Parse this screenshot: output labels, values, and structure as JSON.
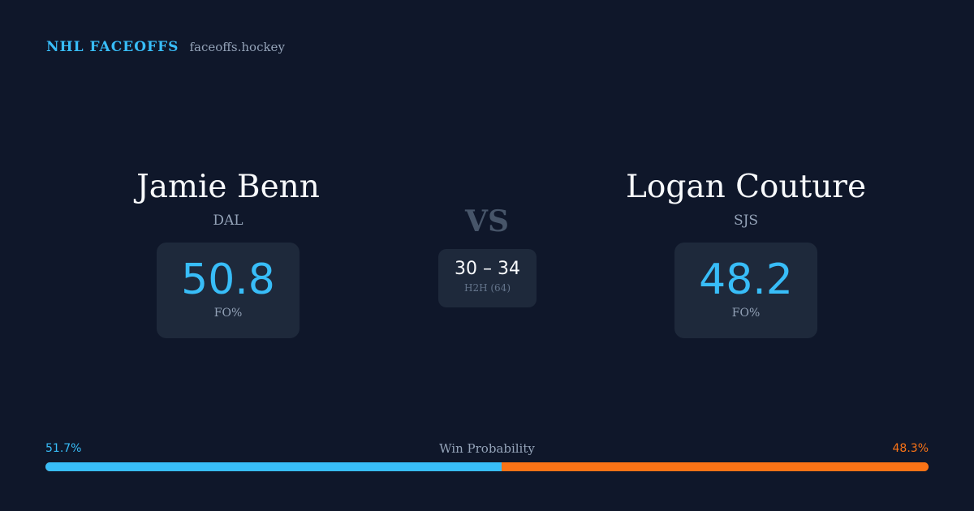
{
  "brand": {
    "name": "NHL FACEOFFS",
    "domain": "faceoffs.hockey"
  },
  "player_left": {
    "name": "Jamie Benn",
    "team": "DAL",
    "fo_value": "50.8",
    "fo_label": "FO%"
  },
  "player_right": {
    "name": "Logan Couture",
    "team": "SJS",
    "fo_value": "48.2",
    "fo_label": "FO%"
  },
  "versus": "VS",
  "h2h": {
    "score": "30 – 34",
    "label": "H2H (64)"
  },
  "win_probability": {
    "title": "Win Probability",
    "left_label": "51.7%",
    "right_label": "48.3%",
    "left_pct": 51.7,
    "right_pct": 48.3
  },
  "colors": {
    "background": "#0f172a",
    "card": "#1e293b",
    "accent_blue": "#38bdf8",
    "accent_orange": "#f97316",
    "muted": "#94a3b8"
  }
}
